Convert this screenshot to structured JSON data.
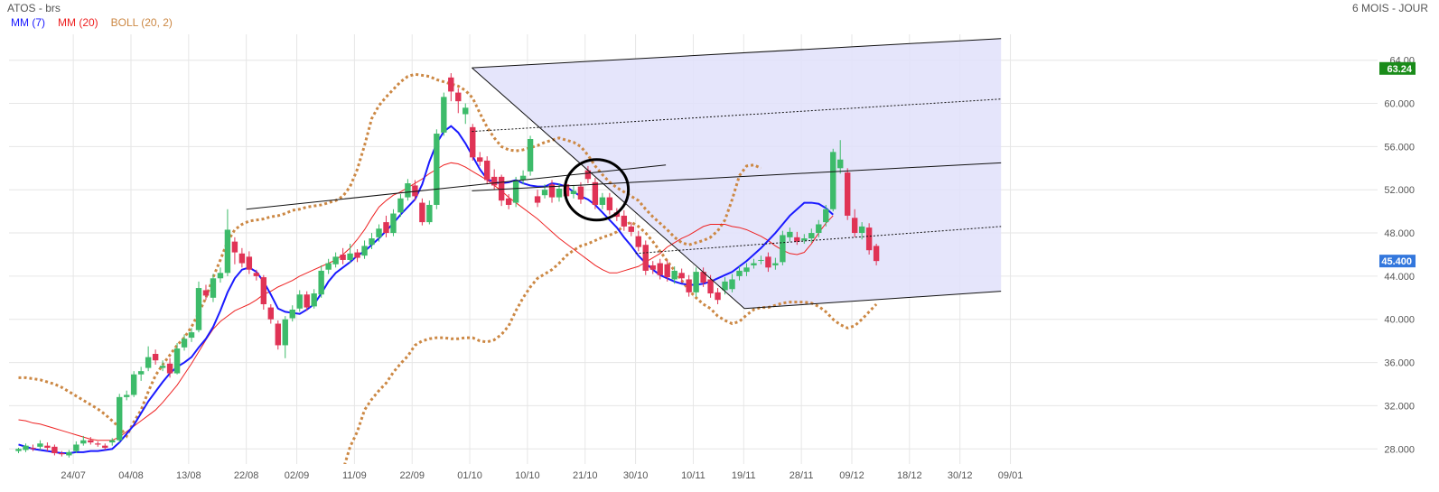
{
  "header": {
    "title": "ATOS - brs",
    "period": "6 MOIS - JOUR"
  },
  "legend": [
    {
      "label": "MM (7)",
      "color": "#1a1aff"
    },
    {
      "label": "MM (20)",
      "color": "#ee2222"
    },
    {
      "label": "BOLL (20, 2)",
      "color": "#cc8844"
    }
  ],
  "chart_data": {
    "type": "candlestick",
    "ylim": [
      26.6,
      66.4
    ],
    "y_ticks": [
      28,
      32,
      36,
      40,
      44,
      48,
      52,
      56,
      60,
      64
    ],
    "y_tick_labels": [
      "28.000",
      "32.000",
      "36.000",
      "40.000",
      "44.000",
      "48.000",
      "52.000",
      "56.000",
      "60.000",
      "64.00"
    ],
    "x_labels": [
      "24/07",
      "04/08",
      "13/08",
      "22/08",
      "02/09",
      "11/09",
      "22/09",
      "01/10",
      "10/10",
      "21/10",
      "30/10",
      "10/11",
      "19/11",
      "28/11",
      "09/12",
      "18/12",
      "30/12",
      "09/01"
    ],
    "price_tags": [
      {
        "label": "63.24",
        "value": 63.24,
        "color": "#1a8c1a"
      },
      {
        "label": "45.400",
        "value": 45.4,
        "color": "#3377dd"
      }
    ],
    "colors": {
      "up": "#3dbb6a",
      "down": "#e03355",
      "mm7": "#1a1aff",
      "mm20": "#ee2222",
      "boll": "#cc8844",
      "channel": "#e0e0fa"
    },
    "candles": [
      [
        27.8,
        28.0,
        27.6,
        28.1
      ],
      [
        27.9,
        28.3,
        27.7,
        28.5
      ],
      [
        28.1,
        28.0,
        27.8,
        28.4
      ],
      [
        28.2,
        28.5,
        27.9,
        28.8
      ],
      [
        28.3,
        28.1,
        27.8,
        28.6
      ],
      [
        28.2,
        27.6,
        27.4,
        28.4
      ],
      [
        27.6,
        27.5,
        27.3,
        27.8
      ],
      [
        27.4,
        27.7,
        27.2,
        27.9
      ],
      [
        27.8,
        28.4,
        27.6,
        28.7
      ],
      [
        28.5,
        28.8,
        28.3,
        29.2
      ],
      [
        28.8,
        28.6,
        28.4,
        29.1
      ],
      [
        28.5,
        28.4,
        28.2,
        28.7
      ],
      [
        28.3,
        28.1,
        27.9,
        28.5
      ],
      [
        28.6,
        28.8,
        28.3,
        29.0
      ],
      [
        28.8,
        32.8,
        28.6,
        33.1
      ],
      [
        32.8,
        33.0,
        32.5,
        33.4
      ],
      [
        33.0,
        34.9,
        32.8,
        35.2
      ],
      [
        34.9,
        35.2,
        34.3,
        35.6
      ],
      [
        35.5,
        36.5,
        35.2,
        37.5
      ],
      [
        36.8,
        36.2,
        35.8,
        37.2
      ],
      [
        35.5,
        35.7,
        35.2,
        36.2
      ],
      [
        35.9,
        35.0,
        34.6,
        36.4
      ],
      [
        35.0,
        37.3,
        34.9,
        37.8
      ],
      [
        37.4,
        38.2,
        37.1,
        38.6
      ],
      [
        38.3,
        38.8,
        37.9,
        39.2
      ],
      [
        39.0,
        42.9,
        38.8,
        43.5
      ],
      [
        42.7,
        42.2,
        41.8,
        43.2
      ],
      [
        42.0,
        43.8,
        41.6,
        44.2
      ],
      [
        43.8,
        44.3,
        43.4,
        44.8
      ],
      [
        44.3,
        48.3,
        44.0,
        50.2
      ],
      [
        47.2,
        46.2,
        45.1,
        47.6
      ],
      [
        46.1,
        45.2,
        44.8,
        46.6
      ],
      [
        45.8,
        44.6,
        44.2,
        46.3
      ],
      [
        44.3,
        44.0,
        43.6,
        44.6
      ],
      [
        43.9,
        41.4,
        40.9,
        44.1
      ],
      [
        41.1,
        40.0,
        39.6,
        41.4
      ],
      [
        39.6,
        37.6,
        37.2,
        39.9
      ],
      [
        37.6,
        40.0,
        36.4,
        40.3
      ],
      [
        40.1,
        40.9,
        39.8,
        41.3
      ],
      [
        41.0,
        42.3,
        40.7,
        42.7
      ],
      [
        42.3,
        41.1,
        40.8,
        42.6
      ],
      [
        41.2,
        42.4,
        41.0,
        42.8
      ],
      [
        42.3,
        44.5,
        42.0,
        45.0
      ],
      [
        44.6,
        45.2,
        44.2,
        45.6
      ],
      [
        45.1,
        45.8,
        44.8,
        46.2
      ],
      [
        46.0,
        45.5,
        45.1,
        46.6
      ],
      [
        45.5,
        46.1,
        45.2,
        47.0
      ],
      [
        46.2,
        45.7,
        45.3,
        46.5
      ],
      [
        45.9,
        46.8,
        45.6,
        47.3
      ],
      [
        46.9,
        47.5,
        46.5,
        48.0
      ],
      [
        47.6,
        48.4,
        47.2,
        48.8
      ],
      [
        49.0,
        48.0,
        47.6,
        49.6
      ],
      [
        48.0,
        49.8,
        47.7,
        50.2
      ],
      [
        49.9,
        51.2,
        49.5,
        51.6
      ],
      [
        51.3,
        52.6,
        51.0,
        53.0
      ],
      [
        52.4,
        51.4,
        51.0,
        52.9
      ],
      [
        50.8,
        49.0,
        48.7,
        51.2
      ],
      [
        49.0,
        50.6,
        48.8,
        51.0
      ],
      [
        50.6,
        57.2,
        50.2,
        57.6
      ],
      [
        57.3,
        60.6,
        57.0,
        61.0
      ],
      [
        62.4,
        61.1,
        60.2,
        62.8
      ],
      [
        61.0,
        60.2,
        59.1,
        61.4
      ],
      [
        59.0,
        59.6,
        58.1,
        60.0
      ],
      [
        57.8,
        55.0,
        54.7,
        58.1
      ],
      [
        55.0,
        54.6,
        54.2,
        55.5
      ],
      [
        54.7,
        52.9,
        52.5,
        55.1
      ],
      [
        53.2,
        52.4,
        52.0,
        53.9
      ],
      [
        53.2,
        51.0,
        50.5,
        53.4
      ],
      [
        51.2,
        50.6,
        50.2,
        51.6
      ],
      [
        50.8,
        52.8,
        50.4,
        53.2
      ],
      [
        52.9,
        53.3,
        52.5,
        53.8
      ],
      [
        53.7,
        56.7,
        53.3,
        57.0
      ],
      [
        51.4,
        50.8,
        50.4,
        52.0
      ],
      [
        51.5,
        52.0,
        51.2,
        52.5
      ],
      [
        52.5,
        51.3,
        50.8,
        52.9
      ],
      [
        51.3,
        52.1,
        50.9,
        52.6
      ],
      [
        52.5,
        51.4,
        51.0,
        53.0
      ],
      [
        51.6,
        51.9,
        51.2,
        52.4
      ],
      [
        52.3,
        51.1,
        50.7,
        52.7
      ],
      [
        53.8,
        53.0,
        52.6,
        54.2
      ],
      [
        52.7,
        50.6,
        50.2,
        53.1
      ],
      [
        50.6,
        51.3,
        50.2,
        51.7
      ],
      [
        51.3,
        50.1,
        49.7,
        51.7
      ],
      [
        49.9,
        49.5,
        49.1,
        50.3
      ],
      [
        49.6,
        48.6,
        48.2,
        50.1
      ],
      [
        48.6,
        48.1,
        47.7,
        49.0
      ],
      [
        47.7,
        46.7,
        46.3,
        48.2
      ],
      [
        46.9,
        44.5,
        44.1,
        47.3
      ],
      [
        45.0,
        44.6,
        44.2,
        45.4
      ],
      [
        45.2,
        44.1,
        43.7,
        45.6
      ],
      [
        45.1,
        43.9,
        43.5,
        45.5
      ],
      [
        43.7,
        44.5,
        43.3,
        44.9
      ],
      [
        44.3,
        43.8,
        43.4,
        44.7
      ],
      [
        43.7,
        42.5,
        42.1,
        44.1
      ],
      [
        42.5,
        44.4,
        42.1,
        44.8
      ],
      [
        44.4,
        43.4,
        43.0,
        44.8
      ],
      [
        43.7,
        42.4,
        42.0,
        44.1
      ],
      [
        42.5,
        41.8,
        41.4,
        42.9
      ],
      [
        42.7,
        43.5,
        42.3,
        43.9
      ],
      [
        42.8,
        43.7,
        42.5,
        44.2
      ],
      [
        44.0,
        44.5,
        43.6,
        44.9
      ],
      [
        44.4,
        44.8,
        44.0,
        45.2
      ],
      [
        45.0,
        45.2,
        44.7,
        45.6
      ],
      [
        45.5,
        45.5,
        45.1,
        45.9
      ],
      [
        45.8,
        44.8,
        44.4,
        46.2
      ],
      [
        45.0,
        45.2,
        44.6,
        45.7
      ],
      [
        45.3,
        47.8,
        45.0,
        48.2
      ],
      [
        47.6,
        48.1,
        47.2,
        48.5
      ],
      [
        47.6,
        47.2,
        46.9,
        48.1
      ],
      [
        47.3,
        47.5,
        47.0,
        47.9
      ],
      [
        47.5,
        48.0,
        47.1,
        48.4
      ],
      [
        48.0,
        48.8,
        47.6,
        49.2
      ],
      [
        49.0,
        50.2,
        48.6,
        50.6
      ],
      [
        50.2,
        55.5,
        50.0,
        55.8
      ],
      [
        54.0,
        54.8,
        53.5,
        56.6
      ],
      [
        53.6,
        49.6,
        49.2,
        54.0
      ],
      [
        49.4,
        48.0,
        47.6,
        50.2
      ],
      [
        48.0,
        48.6,
        47.4,
        49.0
      ],
      [
        48.5,
        46.4,
        46.0,
        48.9
      ],
      [
        46.8,
        45.4,
        45.0,
        47.0
      ]
    ],
    "mm7": [
      28.4,
      28.2,
      28.0,
      27.9,
      27.8,
      27.7,
      27.6,
      27.6,
      27.7,
      27.7,
      27.8,
      27.8,
      27.9,
      28.0,
      28.6,
      29.4,
      30.2,
      31.3,
      32.4,
      33.3,
      34.2,
      35.0,
      35.6,
      36.0,
      36.5,
      37.4,
      38.2,
      39.3,
      40.8,
      42.5,
      43.8,
      44.6,
      44.8,
      44.4,
      43.5,
      42.3,
      41.0,
      40.7,
      40.6,
      40.5,
      40.9,
      41.4,
      42.4,
      43.5,
      44.3,
      44.8,
      45.3,
      45.9,
      46.3,
      46.9,
      47.5,
      48.2,
      48.9,
      49.7,
      50.4,
      51.1,
      52.5,
      54.6,
      56.3,
      57.4,
      57.9,
      57.3,
      56.3,
      55.1,
      53.9,
      53.0,
      52.7,
      52.6,
      52.7,
      52.9,
      52.6,
      52.4,
      52.3,
      52.3,
      52.6,
      52.5,
      52.3,
      51.8,
      51.4,
      51.1,
      50.6,
      49.9,
      49.2,
      48.5,
      47.6,
      46.8,
      45.9,
      45.2,
      44.6,
      44.1,
      43.8,
      43.5,
      43.3,
      43.2,
      43.2,
      43.3,
      43.5,
      43.8,
      44.1,
      44.4,
      44.9,
      45.4,
      46.0,
      46.6,
      47.3,
      48.0,
      48.8,
      49.6,
      50.2,
      50.8,
      50.8,
      50.7,
      50.3,
      49.7
    ],
    "mm20": [
      30.7,
      30.6,
      30.4,
      30.3,
      30.1,
      29.9,
      29.7,
      29.5,
      29.3,
      29.1,
      28.9,
      28.8,
      28.8,
      28.8,
      29.1,
      29.6,
      30.1,
      30.6,
      31.1,
      31.6,
      32.3,
      33.1,
      33.9,
      34.9,
      35.9,
      37.0,
      38.1,
      39.1,
      39.8,
      40.3,
      40.8,
      41.1,
      41.4,
      41.8,
      42.3,
      42.6,
      43.0,
      43.3,
      43.6,
      44.0,
      44.3,
      44.6,
      44.9,
      45.2,
      45.5,
      46.0,
      46.6,
      47.4,
      48.3,
      49.4,
      50.4,
      51.0,
      51.5,
      51.8,
      52.2,
      52.6,
      53.0,
      53.5,
      53.9,
      54.3,
      54.5,
      54.4,
      54.1,
      53.7,
      53.3,
      52.9,
      52.4,
      51.9,
      51.3,
      50.8,
      50.3,
      49.8,
      49.3,
      48.7,
      48.1,
      47.5,
      47.0,
      46.5,
      46.0,
      45.5,
      45.0,
      44.6,
      44.3,
      44.3,
      44.5,
      44.7,
      44.9,
      45.3,
      45.7,
      46.1,
      46.7,
      47.1,
      47.5,
      47.8,
      48.2,
      48.6,
      48.8,
      48.8,
      48.8,
      48.6,
      48.5,
      48.3,
      48.0,
      47.7,
      47.3,
      46.8,
      46.4,
      46.1,
      46.0,
      46.2,
      47.0,
      48.0,
      48.9,
      49.6
    ],
    "boll_upper": [
      34.6,
      34.6,
      34.5,
      34.4,
      34.2,
      34.0,
      33.7,
      33.3,
      32.9,
      32.5,
      32.1,
      31.7,
      31.2,
      30.6,
      30.0,
      29.2,
      30.5,
      31.6,
      33.3,
      34.8,
      35.8,
      36.7,
      37.6,
      38.3,
      39.3,
      40.6,
      42.0,
      43.9,
      45.5,
      47.2,
      48.3,
      48.8,
      49.1,
      49.2,
      49.3,
      49.5,
      49.6,
      49.8,
      50.1,
      50.2,
      50.4,
      50.5,
      50.6,
      50.8,
      51.0,
      51.4,
      52.3,
      53.9,
      56.1,
      58.6,
      59.8,
      60.6,
      61.3,
      62.0,
      62.5,
      62.7,
      62.6,
      62.5,
      62.2,
      62.0,
      61.8,
      61.6,
      61.2,
      60.5,
      59.1,
      57.8,
      56.8,
      56.0,
      55.7,
      55.6,
      55.7,
      55.9,
      56.1,
      56.4,
      56.6,
      56.8,
      56.6,
      56.4,
      56.0,
      55.2,
      54.2,
      53.4,
      52.7,
      52.2,
      51.8,
      51.4,
      51.0,
      50.2,
      49.5,
      48.9,
      48.3,
      47.6,
      47.1,
      46.9,
      47.1,
      47.3,
      47.6,
      48.2,
      49.2,
      51.1,
      53.3,
      54.2,
      54.3,
      54.0
    ],
    "boll_lower": [
      26.6,
      26.6,
      26.6,
      26.6,
      26.6,
      26.6,
      26.6,
      26.6,
      26.6,
      26.6,
      26.6,
      26.6,
      26.6,
      26.6,
      26.6,
      26.6,
      26.6,
      26.6,
      26.6,
      26.6,
      26.6,
      26.6,
      26.6,
      26.6,
      26.6,
      26.6,
      26.6,
      26.6,
      26.6,
      26.6,
      26.6,
      26.6,
      26.6,
      26.6,
      26.6,
      26.6,
      26.6,
      26.6,
      26.6,
      26.6,
      26.6,
      26.6,
      26.6,
      26.6,
      26.6,
      26.6,
      26.6,
      26.6,
      26.6,
      26.6,
      26.6,
      26.6,
      26.6,
      26.6,
      26.6,
      26.6,
      26.6,
      26.6,
      26.6,
      26.6,
      26.6,
      26.6,
      26.6,
      26.6,
      26.6,
      26.6,
      26.6,
      26.6,
      26.6,
      26.6,
      26.6,
      26.6,
      26.6,
      26.6,
      26.6,
      26.6,
      26.6,
      26.6,
      26.6,
      26.6,
      26.6,
      26.6,
      26.6,
      26.6,
      26.6,
      26.6,
      26.6,
      26.6,
      26.6,
      26.6,
      26.6,
      26.6,
      26.6,
      26.6,
      26.6,
      26.6,
      26.6,
      26.6,
      26.6,
      26.6,
      26.6,
      26.6,
      26.6,
      26.6,
      26.6,
      26.6,
      26.6,
      26.6,
      26.6,
      26.6,
      26.6,
      26.6,
      26.6,
      26.6,
      26.6,
      26.6,
      26.6,
      26.6,
      26.6,
      26.6
    ],
    "boll_lower_visible": [
      26.0,
      28.2,
      29.6,
      31.6,
      32.6,
      33.4,
      34.1,
      35.1,
      35.9,
      36.6,
      37.6,
      38.0,
      38.2,
      38.3,
      38.3,
      38.2,
      38.2,
      38.3,
      38.3,
      38.0,
      37.9,
      38.1,
      38.6,
      39.4,
      40.8,
      42.0,
      43.0,
      43.8,
      44.2,
      44.6,
      45.2,
      45.9,
      46.4,
      46.8,
      47.0,
      47.3,
      47.6,
      47.8,
      48.1,
      48.7,
      49.0,
      48.6,
      48.0,
      47.2,
      46.3,
      45.4,
      44.5,
      43.6,
      42.7,
      42.0,
      41.4,
      41.0,
      40.3,
      39.9,
      39.6,
      39.8,
      40.4,
      40.9,
      41.1,
      41.1,
      41.3,
      41.5,
      41.6,
      41.6,
      41.6,
      41.5,
      41.2,
      40.7,
      40.0,
      39.5,
      39.2,
      39.4,
      40.0,
      40.7,
      41.4
    ],
    "channel": {
      "upper": [
        [
          62.9,
          63.3
        ],
        [
          136.3,
          66.0
        ]
      ],
      "lower": [
        [
          100.7,
          41.0
        ],
        [
          136.3,
          42.6
        ]
      ],
      "mid_lines": [
        [
          [
            62.9,
            57.4
          ],
          [
            136.3,
            60.4
          ]
        ],
        [
          [
            62.9,
            51.9
          ],
          [
            136.3,
            54.5
          ]
        ],
        [
          [
            62.9,
            46.3
          ],
          [
            136.3,
            48.6
          ]
        ]
      ],
      "down_line": [
        [
          62.9,
          63.3
        ],
        [
          100.7,
          41.0
        ]
      ],
      "resistance": [
        [
          31.6,
          50.2
        ],
        [
          89.8,
          54.3
        ]
      ]
    },
    "circle": {
      "cx": 80.2,
      "cy": 52.0,
      "rx": 4.4,
      "ry": 2.8
    },
    "x_tick_index": [
      7.6,
      15.6,
      23.6,
      31.6,
      38.6,
      46.6,
      54.6,
      62.6,
      70.6,
      78.6,
      85.6,
      93.6,
      100.6,
      108.6,
      115.6,
      123.6,
      130.6,
      137.6
    ]
  }
}
